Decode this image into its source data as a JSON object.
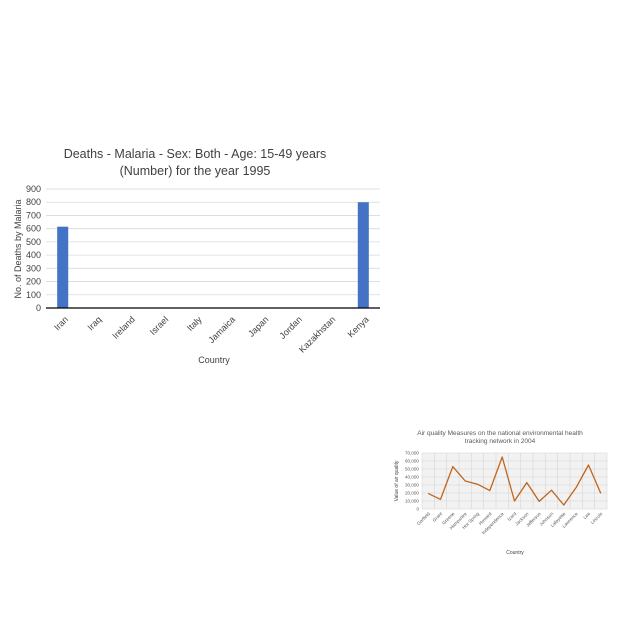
{
  "chart_data": [
    {
      "type": "bar",
      "title": "Deaths - Malaria - Sex: Both - Age: 15-49 years",
      "subtitle": "(Number) for the year 1995",
      "xlabel": "Country",
      "ylabel": "No. of Deaths by Malaria",
      "categories": [
        "Iran",
        "Iraq",
        "Ireland",
        "Israel",
        "Italy",
        "Jamaica",
        "Japan",
        "Jordan",
        "Kazakhstan",
        "Kenya"
      ],
      "values": [
        615,
        0,
        0,
        0,
        0,
        0,
        0,
        0,
        0,
        800
      ],
      "ylim": [
        0,
        900
      ],
      "yticks": [
        "0",
        "100",
        "200",
        "300",
        "400",
        "500",
        "600",
        "700",
        "800",
        "900"
      ],
      "grid": true,
      "color": "#4472C4"
    },
    {
      "type": "line",
      "title": "Air quality Measures on the national environmental health",
      "subtitle": "tracking network in 2004",
      "xlabel": "Country",
      "ylabel": "Value of air quality",
      "categories": [
        "Garfield",
        "Grant",
        "Greene",
        "Hampshire",
        "Hot Spring",
        "Howard",
        "Independence",
        "Izard",
        "Jackson",
        "Jefferson",
        "Johnson",
        "Lafayette",
        "Lawrence",
        "Lee",
        "Lincoln"
      ],
      "values": [
        19500,
        12000,
        53000,
        35000,
        31000,
        23000,
        65000,
        10000,
        33000,
        9500,
        23500,
        5000,
        27000,
        55000,
        19500
      ],
      "ylim": [
        0,
        70000
      ],
      "yticks": [
        "0",
        "10,000",
        "20,000",
        "30,000",
        "40,000",
        "50,000",
        "60,000",
        "70,000"
      ],
      "grid": true,
      "color": "#C0651E"
    }
  ]
}
